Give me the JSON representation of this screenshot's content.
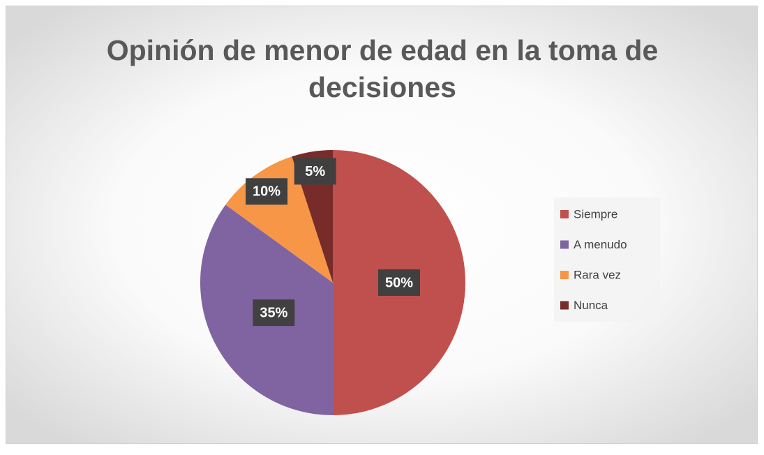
{
  "chart_data": {
    "type": "pie",
    "title": "Opinión de menor de edad en la toma de decisiones",
    "categories": [
      "Siempre",
      "A menudo",
      "Rara vez",
      "Nunca"
    ],
    "values": [
      50,
      35,
      10,
      5
    ],
    "value_labels": [
      "50%",
      "35%",
      "10%",
      "5%"
    ],
    "colors": [
      "#c0504d",
      "#8064a2",
      "#f79646",
      "#772c2a"
    ],
    "legend": "right"
  }
}
